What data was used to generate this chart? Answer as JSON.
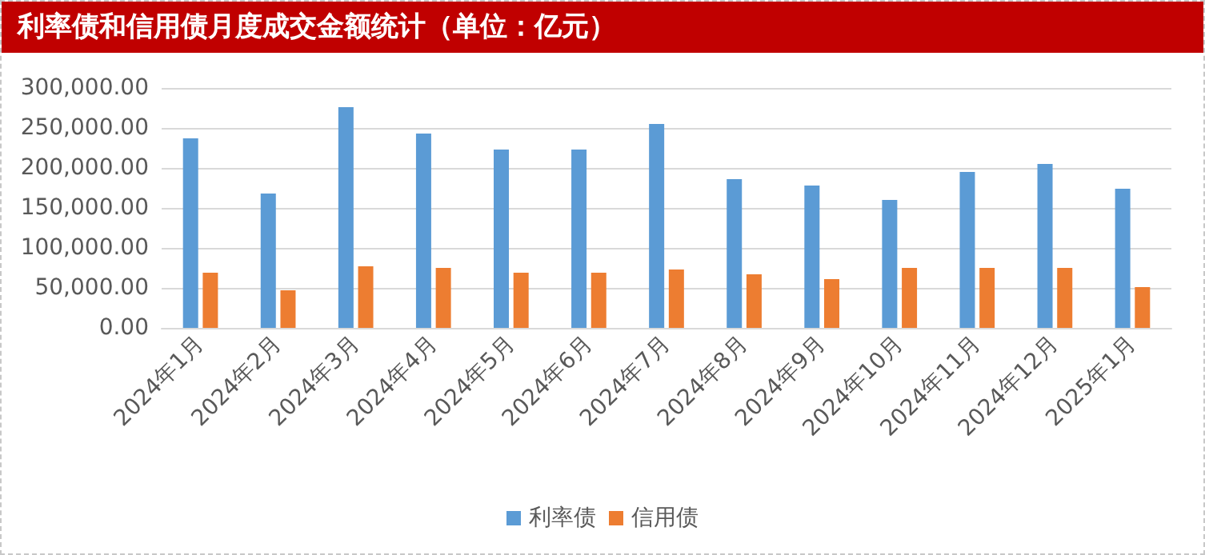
{
  "chart_data": {
    "type": "bar",
    "title": "利率债和信用债月度成交金额统计（单位：亿元）",
    "categories": [
      "2024年1月",
      "2024年2月",
      "2024年3月",
      "2024年4月",
      "2024年5月",
      "2024年6月",
      "2024年7月",
      "2024年8月",
      "2024年9月",
      "2024年10月",
      "2024年11月",
      "2024年12月",
      "2025年1月"
    ],
    "series": [
      {
        "name": "利率债",
        "color": "#5b9bd5",
        "values": [
          237000,
          168000,
          276000,
          243000,
          223000,
          223000,
          255000,
          186000,
          178000,
          160000,
          195000,
          205000,
          174000
        ]
      },
      {
        "name": "信用债",
        "color": "#ed7d31",
        "values": [
          69000,
          47000,
          77000,
          75000,
          69000,
          69000,
          73000,
          67000,
          61000,
          75000,
          75000,
          75000,
          51000
        ]
      }
    ],
    "ylim": [
      0,
      300000
    ],
    "yticks": [
      {
        "value": 0,
        "label": "0.00"
      },
      {
        "value": 50000,
        "label": "50,000.00"
      },
      {
        "value": 100000,
        "label": "100,000.00"
      },
      {
        "value": 150000,
        "label": "150,000.00"
      },
      {
        "value": 200000,
        "label": "200,000.00"
      },
      {
        "value": 250000,
        "label": "250,000.00"
      },
      {
        "value": 300000,
        "label": "300,000.00"
      }
    ],
    "grid": "y",
    "legend": "bottom"
  }
}
